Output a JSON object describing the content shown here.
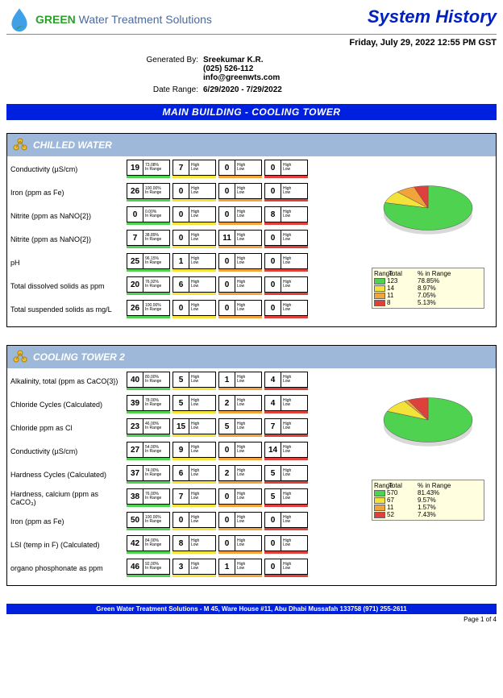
{
  "header": {
    "logo_green": "GREEN",
    "logo_rest": " Water Treatment Solutions",
    "title": "System History",
    "date_line": "Friday, July 29, 2022  12:55 PM GST",
    "gen_label": "Generated By:",
    "gen_name": "Sreekumar K.R.",
    "gen_phone": "(025) 526-112",
    "gen_email": "info@greenwts.com",
    "range_label": "Date Range:",
    "range_val": "6/29/2020 - 7/29/2022"
  },
  "blue_bar": "MAIN BUILDING - COOLING TOWER",
  "colors": {
    "green": "#4fd24f",
    "yellow": "#f2e23a",
    "orange": "#f2a33a",
    "red": "#e0403a",
    "section_header": "#9db8d8",
    "blue_bar": "#0020e0",
    "legend_bg": "#ffffe0"
  },
  "cell_mini_labels": {
    "pct_top": "",
    "in_range": "In Range",
    "high": "High",
    "low": "Low"
  },
  "sections": [
    {
      "title": "CHILLED WATER",
      "params": [
        {
          "label": "Conductivity (µS/cm)",
          "cells": [
            {
              "big": "19",
              "t": "73.08%",
              "b": "In Range",
              "c": "green"
            },
            {
              "big": "7",
              "t": "High",
              "b": "Low",
              "c": "yellow"
            },
            {
              "big": "0",
              "t": "High",
              "b": "Low",
              "c": "orange"
            },
            {
              "big": "0",
              "t": "High",
              "b": "Low",
              "c": "red"
            }
          ]
        },
        {
          "label": "Iron (ppm as Fe)",
          "cells": [
            {
              "big": "26",
              "t": "100.00%",
              "b": "In Range",
              "c": "green"
            },
            {
              "big": "0",
              "t": "High",
              "b": "Low",
              "c": "yellow"
            },
            {
              "big": "0",
              "t": "High",
              "b": "Low",
              "c": "orange"
            },
            {
              "big": "0",
              "t": "High",
              "b": "Low",
              "c": "red"
            }
          ]
        },
        {
          "label": "Nitrite (ppm as NaNO{2})",
          "cells": [
            {
              "big": "0",
              "t": "0.00%",
              "b": "In Range",
              "c": "green"
            },
            {
              "big": "0",
              "t": "High",
              "b": "Low",
              "c": "yellow"
            },
            {
              "big": "0",
              "t": "High",
              "b": "Low",
              "c": "orange"
            },
            {
              "big": "8",
              "t": "High",
              "b": "Low",
              "c": "red"
            }
          ]
        },
        {
          "label": "Nitrite (ppm as NaNO{2})",
          "cells": [
            {
              "big": "7",
              "t": "38.89%",
              "b": "In Range",
              "c": "green"
            },
            {
              "big": "0",
              "t": "High",
              "b": "Low",
              "c": "yellow"
            },
            {
              "big": "11",
              "t": "High",
              "b": "Low",
              "c": "orange"
            },
            {
              "big": "0",
              "t": "High",
              "b": "Low",
              "c": "red"
            }
          ]
        },
        {
          "label": "pH",
          "cells": [
            {
              "big": "25",
              "t": "96.15%",
              "b": "In Range",
              "c": "green"
            },
            {
              "big": "1",
              "t": "High",
              "b": "Low",
              "c": "yellow"
            },
            {
              "big": "0",
              "t": "High",
              "b": "Low",
              "c": "orange"
            },
            {
              "big": "0",
              "t": "High",
              "b": "Low",
              "c": "red"
            }
          ]
        },
        {
          "label": "Total dissolved solids as ppm",
          "cells": [
            {
              "big": "20",
              "t": "76.92%",
              "b": "In Range",
              "c": "green"
            },
            {
              "big": "6",
              "t": "High",
              "b": "Low",
              "c": "yellow"
            },
            {
              "big": "0",
              "t": "High",
              "b": "Low",
              "c": "orange"
            },
            {
              "big": "0",
              "t": "High",
              "b": "Low",
              "c": "red"
            }
          ]
        },
        {
          "label": "Total suspended solids as mg/L",
          "cells": [
            {
              "big": "26",
              "t": "100.00%",
              "b": "In Range",
              "c": "green"
            },
            {
              "big": "0",
              "t": "High",
              "b": "Low",
              "c": "yellow"
            },
            {
              "big": "0",
              "t": "High",
              "b": "Low",
              "c": "orange"
            },
            {
              "big": "0",
              "t": "High",
              "b": "Low",
              "c": "red"
            }
          ]
        }
      ],
      "pie": {
        "green": 78.85,
        "yellow": 8.97,
        "orange": 7.05,
        "red": 5.13
      },
      "legend_head": [
        "Range",
        "Total",
        "% in Range"
      ],
      "legend": [
        {
          "c": "green",
          "total": "123",
          "pct": "78.85%"
        },
        {
          "c": "yellow",
          "total": "14",
          "pct": "8.97%"
        },
        {
          "c": "orange",
          "total": "11",
          "pct": "7.05%"
        },
        {
          "c": "red",
          "total": "8",
          "pct": "5.13%"
        }
      ]
    },
    {
      "title": "COOLING TOWER 2",
      "params": [
        {
          "label": "Alkalinity, total (ppm as CaCO{3})",
          "cells": [
            {
              "big": "40",
              "t": "80.00%",
              "b": "In Range",
              "c": "green"
            },
            {
              "big": "5",
              "t": "High",
              "b": "Low",
              "c": "yellow"
            },
            {
              "big": "1",
              "t": "High",
              "b": "Low",
              "c": "orange"
            },
            {
              "big": "4",
              "t": "High",
              "b": "Low",
              "c": "red"
            }
          ]
        },
        {
          "label": "Chloride Cycles (Calculated)",
          "cells": [
            {
              "big": "39",
              "t": "78.00%",
              "b": "In Range",
              "c": "green"
            },
            {
              "big": "5",
              "t": "High",
              "b": "Low",
              "c": "yellow"
            },
            {
              "big": "2",
              "t": "High",
              "b": "Low",
              "c": "orange"
            },
            {
              "big": "4",
              "t": "High",
              "b": "Low",
              "c": "red"
            }
          ]
        },
        {
          "label": "Chloride ppm as Cl",
          "cells": [
            {
              "big": "23",
              "t": "46.00%",
              "b": "In Range",
              "c": "green"
            },
            {
              "big": "15",
              "t": "High",
              "b": "Low",
              "c": "yellow"
            },
            {
              "big": "5",
              "t": "High",
              "b": "Low",
              "c": "orange"
            },
            {
              "big": "7",
              "t": "High",
              "b": "Low",
              "c": "red"
            }
          ]
        },
        {
          "label": "Conductivity (µS/cm)",
          "cells": [
            {
              "big": "27",
              "t": "54.00%",
              "b": "In Range",
              "c": "green"
            },
            {
              "big": "9",
              "t": "High",
              "b": "Low",
              "c": "yellow"
            },
            {
              "big": "0",
              "t": "High",
              "b": "Low",
              "c": "orange"
            },
            {
              "big": "14",
              "t": "High",
              "b": "Low",
              "c": "red"
            }
          ]
        },
        {
          "label": "Hardness Cycles (Calculated)",
          "cells": [
            {
              "big": "37",
              "t": "74.00%",
              "b": "In Range",
              "c": "green"
            },
            {
              "big": "6",
              "t": "High",
              "b": "Low",
              "c": "yellow"
            },
            {
              "big": "2",
              "t": "High",
              "b": "Low",
              "c": "orange"
            },
            {
              "big": "5",
              "t": "High",
              "b": "Low",
              "c": "red"
            }
          ]
        },
        {
          "label": "Hardness, calcium (ppm as CaCO₃)",
          "cells": [
            {
              "big": "38",
              "t": "76.00%",
              "b": "In Range",
              "c": "green"
            },
            {
              "big": "7",
              "t": "High",
              "b": "Low",
              "c": "yellow"
            },
            {
              "big": "0",
              "t": "High",
              "b": "Low",
              "c": "orange"
            },
            {
              "big": "5",
              "t": "High",
              "b": "Low",
              "c": "red"
            }
          ]
        },
        {
          "label": "Iron (ppm as Fe)",
          "cells": [
            {
              "big": "50",
              "t": "100.00%",
              "b": "In Range",
              "c": "green"
            },
            {
              "big": "0",
              "t": "High",
              "b": "Low",
              "c": "yellow"
            },
            {
              "big": "0",
              "t": "High",
              "b": "Low",
              "c": "orange"
            },
            {
              "big": "0",
              "t": "High",
              "b": "Low",
              "c": "red"
            }
          ]
        },
        {
          "label": "LSI (temp in F) (Calculated)",
          "cells": [
            {
              "big": "42",
              "t": "84.00%",
              "b": "In Range",
              "c": "green"
            },
            {
              "big": "8",
              "t": "High",
              "b": "Low",
              "c": "yellow"
            },
            {
              "big": "0",
              "t": "High",
              "b": "Low",
              "c": "orange"
            },
            {
              "big": "0",
              "t": "High",
              "b": "Low",
              "c": "red"
            }
          ]
        },
        {
          "label": "organo phosphonate as ppm",
          "cells": [
            {
              "big": "46",
              "t": "92.00%",
              "b": "In Range",
              "c": "green"
            },
            {
              "big": "3",
              "t": "High",
              "b": "Low",
              "c": "yellow"
            },
            {
              "big": "1",
              "t": "High",
              "b": "Low",
              "c": "orange"
            },
            {
              "big": "0",
              "t": "High",
              "b": "Low",
              "c": "red"
            }
          ]
        }
      ],
      "pie": {
        "green": 81.43,
        "yellow": 9.57,
        "orange": 1.57,
        "red": 7.43
      },
      "legend_head": [
        "Range",
        "Total",
        "% in Range"
      ],
      "legend": [
        {
          "c": "green",
          "total": "570",
          "pct": "81.43%"
        },
        {
          "c": "yellow",
          "total": "67",
          "pct": "9.57%"
        },
        {
          "c": "orange",
          "total": "11",
          "pct": "1.57%"
        },
        {
          "c": "red",
          "total": "52",
          "pct": "7.43%"
        }
      ]
    }
  ],
  "footer": "Green Water Treatment Solutions - M 45, Ware House #11, Abu Dhabi Mussafah 133758 (971) 255-2611",
  "page": "Page 1 of 4"
}
